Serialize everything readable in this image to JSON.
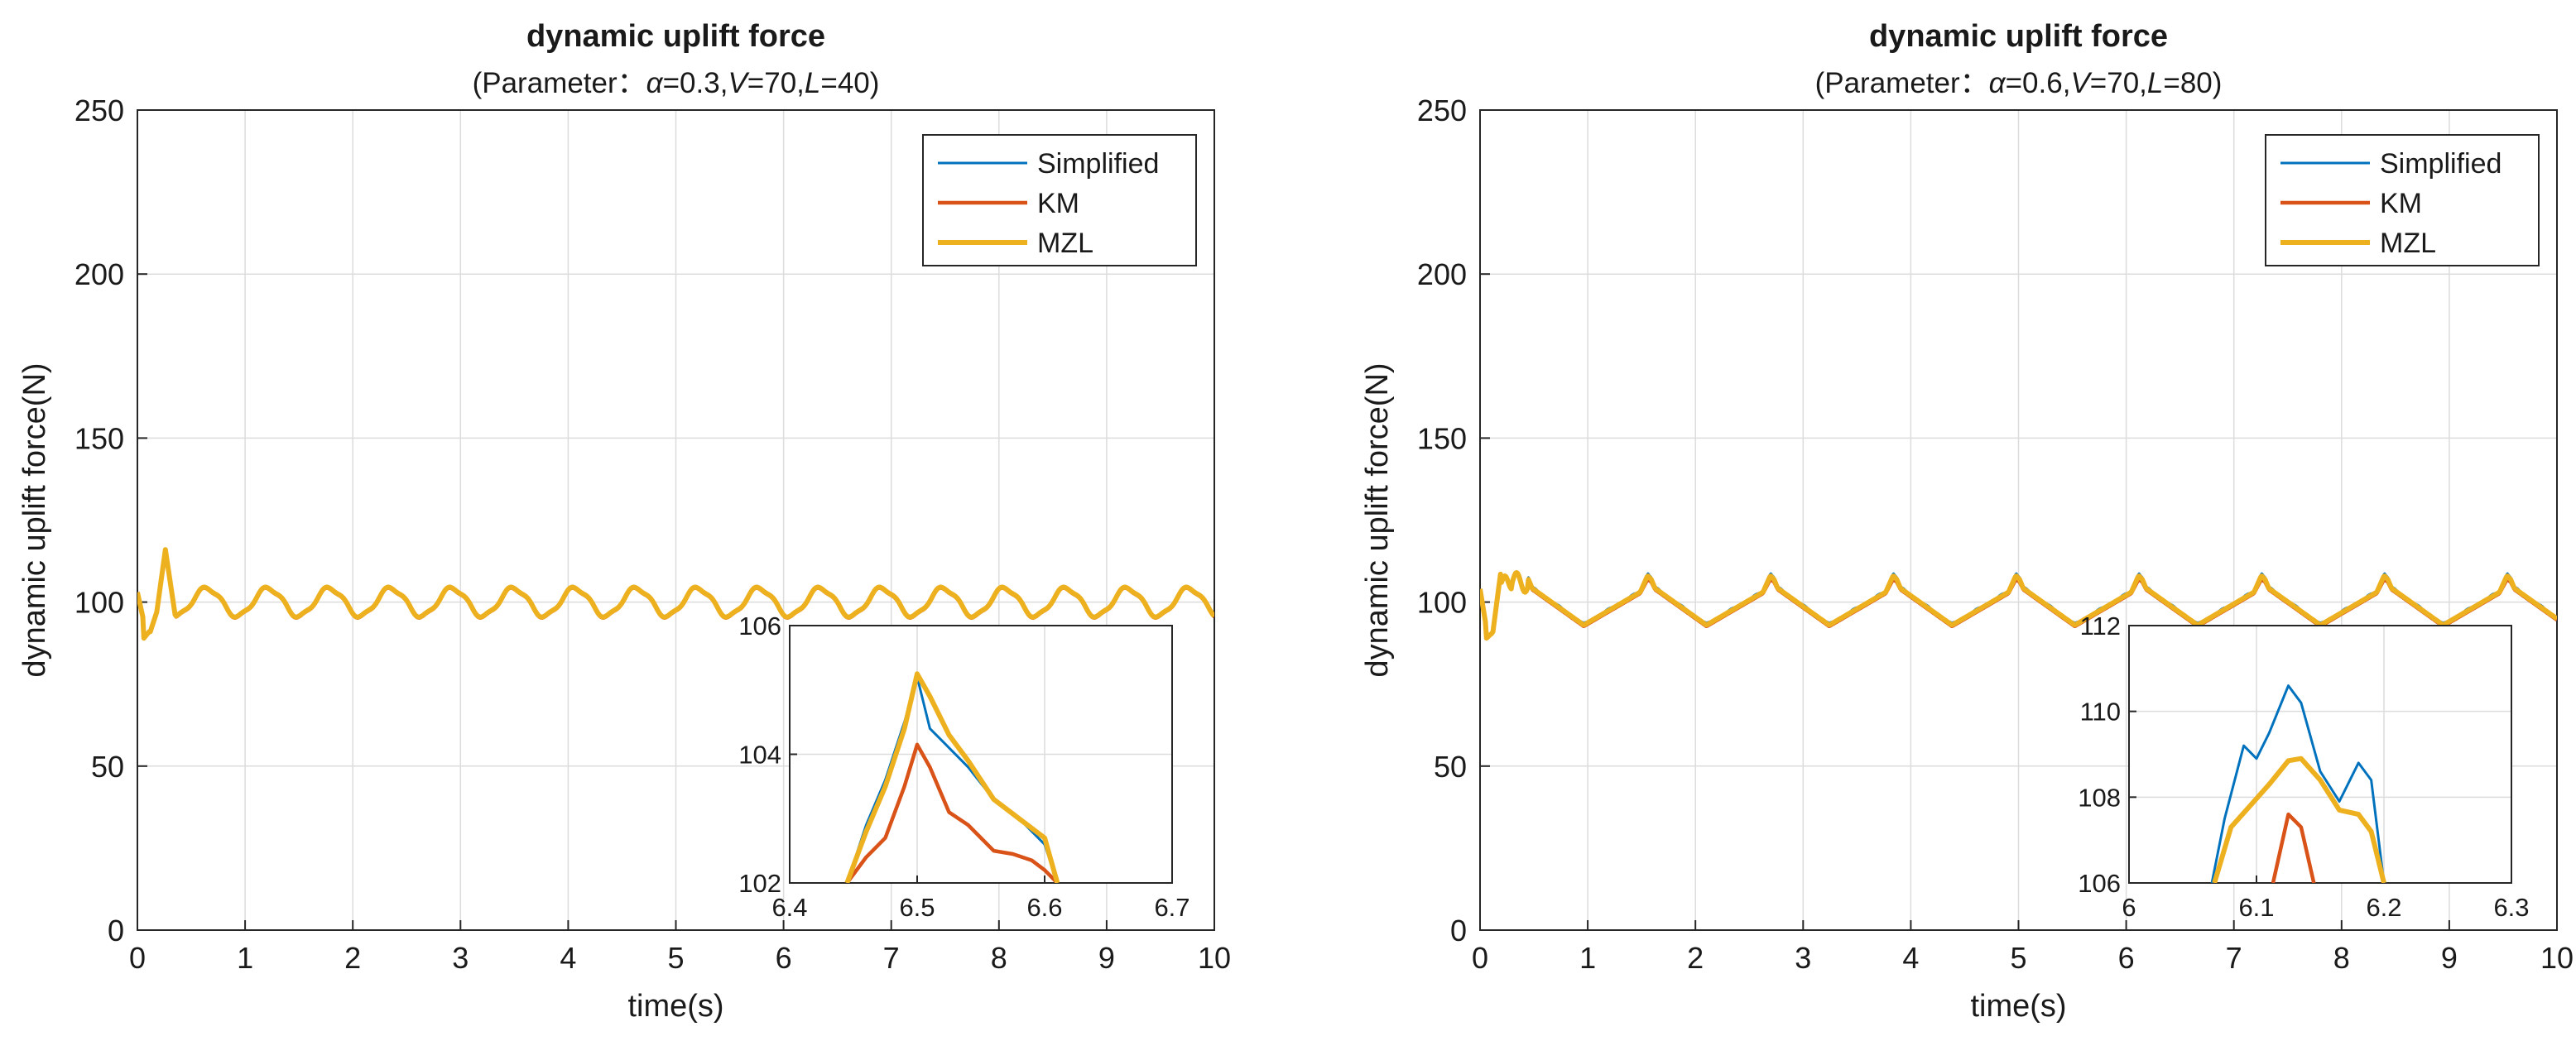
{
  "chart_data": [
    {
      "type": "line",
      "title": "dynamic uplift force",
      "subtitle_parts": [
        {
          "t": "(Parameter：",
          "i": false
        },
        {
          "t": "α",
          "i": true
        },
        {
          "t": "=0.3,",
          "i": false
        },
        {
          "t": "V",
          "i": true
        },
        {
          "t": "=70,",
          "i": false
        },
        {
          "t": "L",
          "i": true
        },
        {
          "t": "=40)",
          "i": false
        }
      ],
      "xlabel": "time(s)",
      "ylabel": "dynamic uplift force(N)",
      "xlim": [
        0,
        10
      ],
      "ylim": [
        0,
        250
      ],
      "xticks": [
        0,
        1,
        2,
        3,
        4,
        5,
        6,
        7,
        8,
        9,
        10
      ],
      "yticks": [
        0,
        50,
        100,
        150,
        200,
        250
      ],
      "grid": true,
      "legend_position": "top-right",
      "legend": [
        "Simplified",
        "KM",
        "MZL"
      ],
      "colors": {
        "Simplified": "#0072BD",
        "KM": "#D95319",
        "MZL": "#EDB120"
      },
      "oscillation": {
        "period_s": 0.57,
        "mean_N": 100,
        "amplitude_N": 4.5,
        "initial_peak_N": 116,
        "initial_peak_time_s": 0.25,
        "initial_dip_N": 89
      },
      "inset": {
        "xlim": [
          6.4,
          6.7
        ],
        "ylim": [
          102,
          106
        ],
        "xticks": [
          6.4,
          6.5,
          6.6,
          6.7
        ],
        "yticks": [
          102,
          104,
          106
        ],
        "series": [
          {
            "name": "Simplified",
            "x": [
              6.445,
              6.46,
              6.475,
              6.49,
              6.5,
              6.51,
              6.525,
              6.54,
              6.56,
              6.58,
              6.6,
              6.61
            ],
            "y": [
              102,
              102.9,
              103.6,
              104.5,
              105.2,
              104.4,
              104.1,
              103.8,
              103.3,
              103.0,
              102.6,
              102
            ]
          },
          {
            "name": "KM",
            "x": [
              6.445,
              6.46,
              6.475,
              6.49,
              6.5,
              6.51,
              6.525,
              6.54,
              6.56,
              6.575,
              6.59,
              6.6,
              6.61
            ],
            "y": [
              102,
              102.4,
              102.7,
              103.5,
              104.15,
              103.8,
              103.1,
              102.9,
              102.5,
              102.45,
              102.35,
              102.2,
              102
            ]
          },
          {
            "name": "MZL",
            "x": [
              6.445,
              6.46,
              6.475,
              6.49,
              6.5,
              6.51,
              6.525,
              6.54,
              6.56,
              6.58,
              6.6,
              6.61
            ],
            "y": [
              102,
              102.8,
              103.5,
              104.4,
              105.25,
              104.9,
              104.3,
              103.9,
              103.3,
              103.0,
              102.7,
              102
            ]
          }
        ]
      }
    },
    {
      "type": "line",
      "title": "dynamic uplift force",
      "subtitle_parts": [
        {
          "t": "(Parameter：",
          "i": false
        },
        {
          "t": "α",
          "i": true
        },
        {
          "t": "=0.6,",
          "i": false
        },
        {
          "t": "V",
          "i": true
        },
        {
          "t": "=70,",
          "i": false
        },
        {
          "t": "L",
          "i": true
        },
        {
          "t": "=80)",
          "i": false
        }
      ],
      "xlabel": "time(s)",
      "ylabel": "dynamic uplift force(N)",
      "xlim": [
        0,
        10
      ],
      "ylim": [
        0,
        250
      ],
      "xticks": [
        0,
        1,
        2,
        3,
        4,
        5,
        6,
        7,
        8,
        9,
        10
      ],
      "yticks": [
        0,
        50,
        100,
        150,
        200,
        250
      ],
      "grid": true,
      "legend_position": "top-right",
      "legend": [
        "Simplified",
        "KM",
        "MZL"
      ],
      "colors": {
        "Simplified": "#0072BD",
        "KM": "#D95319",
        "MZL": "#EDB120"
      },
      "oscillation": {
        "period_s": 1.14,
        "mean_N": 101,
        "peak_N": 110,
        "trough_N": 93,
        "initial_peak_N": 111,
        "initial_dip_N": 89
      },
      "inset": {
        "xlim": [
          6.0,
          6.3
        ],
        "ylim": [
          106,
          112
        ],
        "xticks": [
          6.0,
          6.1,
          6.2,
          6.3
        ],
        "yticks": [
          106,
          108,
          110,
          112
        ],
        "series": [
          {
            "name": "Simplified",
            "x": [
              6.065,
              6.075,
              6.09,
              6.1,
              6.11,
              6.125,
              6.135,
              6.15,
              6.165,
              6.18,
              6.19,
              6.2
            ],
            "y": [
              106,
              107.5,
              109.2,
              108.9,
              109.5,
              110.6,
              110.2,
              108.6,
              107.9,
              108.8,
              108.4,
              106
            ]
          },
          {
            "name": "KM",
            "x": [
              6.113,
              6.125,
              6.135,
              6.145
            ],
            "y": [
              106,
              107.6,
              107.3,
              106
            ]
          },
          {
            "name": "MZL",
            "x": [
              6.067,
              6.08,
              6.095,
              6.11,
              6.125,
              6.135,
              6.15,
              6.165,
              6.18,
              6.19,
              6.2
            ],
            "y": [
              106,
              107.3,
              107.8,
              108.3,
              108.85,
              108.9,
              108.4,
              107.7,
              107.6,
              107.2,
              106
            ]
          }
        ]
      }
    }
  ]
}
